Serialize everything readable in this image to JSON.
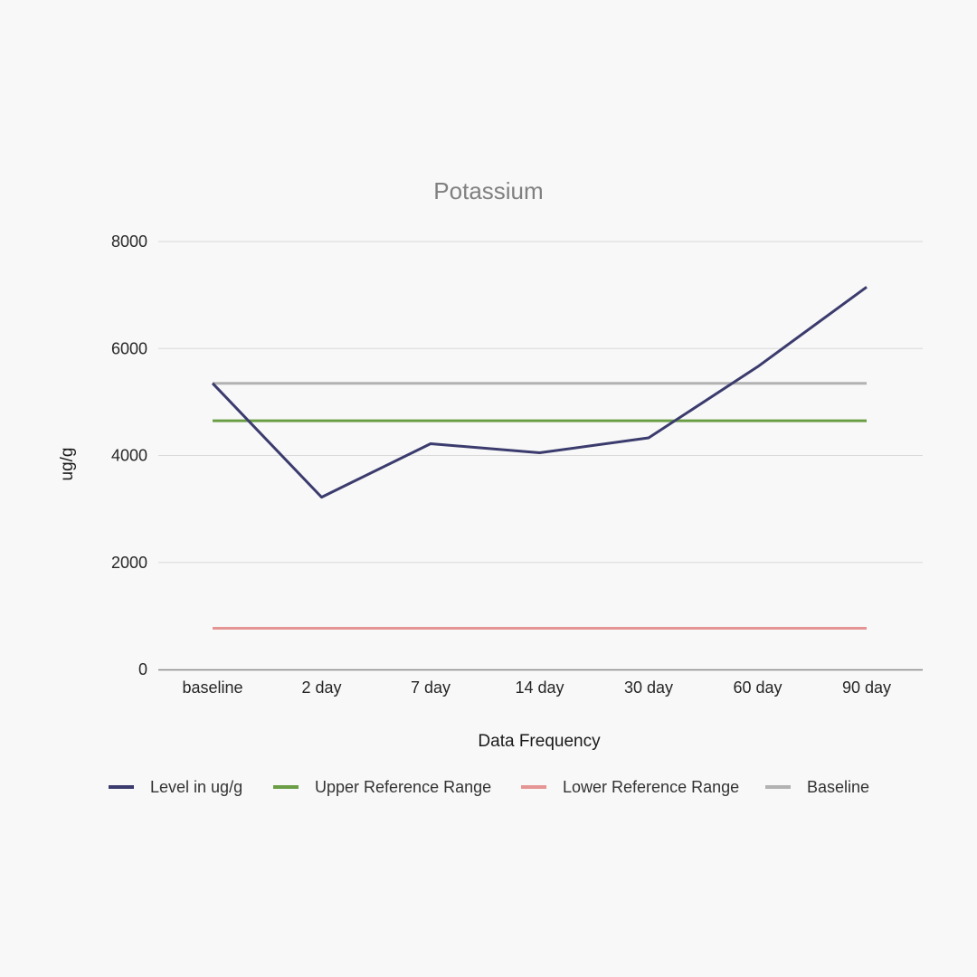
{
  "chart_data": {
    "type": "line",
    "title": "Potassium",
    "xlabel": "Data Frequency",
    "ylabel": "ug/g",
    "categories": [
      "baseline",
      "2 day",
      "7 day",
      "14 day",
      "30 day",
      "60 day",
      "90 day"
    ],
    "ylim": [
      0,
      8000
    ],
    "yticks": [
      "0",
      "2000",
      "4000",
      "6000",
      "8000"
    ],
    "grid": true,
    "legend_position": "bottom",
    "series": [
      {
        "name": "Level in ug/g",
        "color": "#3b3b6e",
        "values": [
          5350,
          3220,
          4220,
          4050,
          4330,
          5660,
          7150
        ]
      },
      {
        "name": "Upper Reference Range",
        "color": "#6a9e45",
        "values": [
          4650,
          4650,
          4650,
          4650,
          4650,
          4650,
          4650
        ]
      },
      {
        "name": "Lower Reference Range",
        "color": "#e59593",
        "values": [
          770,
          770,
          770,
          770,
          770,
          770,
          770
        ]
      },
      {
        "name": "Baseline",
        "color": "#b2b2b2",
        "values": [
          5350,
          5350,
          5350,
          5350,
          5350,
          5350,
          5350
        ]
      }
    ]
  }
}
